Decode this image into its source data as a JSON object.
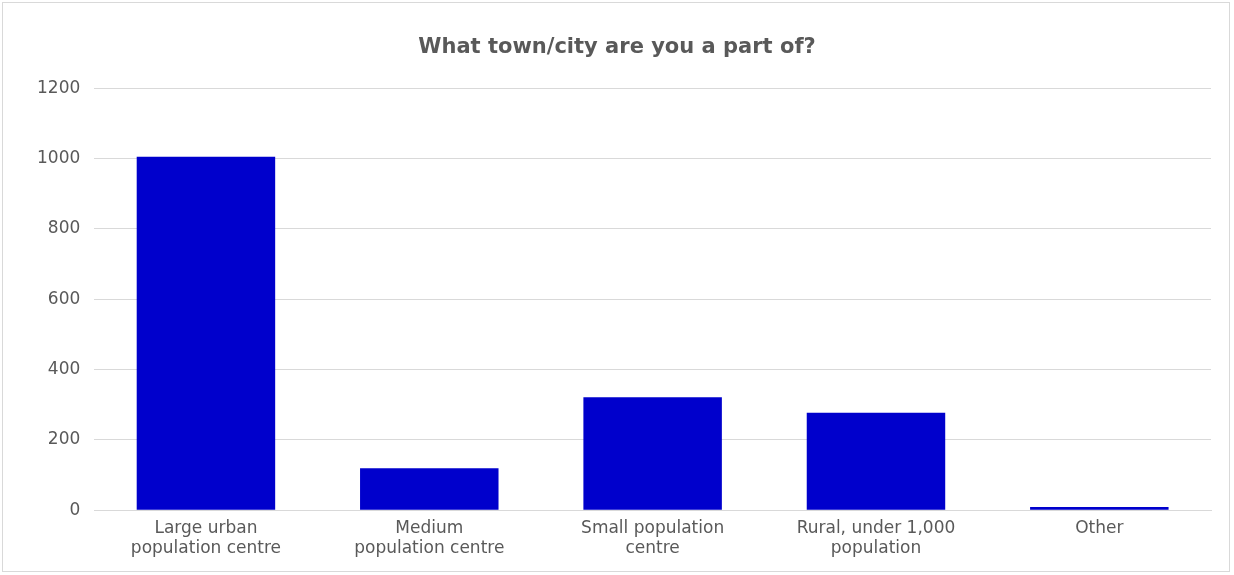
{
  "chart_data": {
    "type": "bar",
    "title": "What town/city are you a part of?",
    "categories": [
      [
        "Large urban",
        "population centre"
      ],
      [
        "Medium",
        "population centre"
      ],
      [
        "Small population",
        "centre"
      ],
      [
        "Rural, under 1,000",
        "population"
      ],
      "Other"
    ],
    "values": [
      1005,
      119,
      321,
      277,
      9
    ],
    "color": "#0000cc",
    "ylim": [
      0,
      1200
    ],
    "yticks": [
      0,
      200,
      400,
      600,
      800,
      1000,
      1200
    ],
    "grid": "y",
    "legend": false
  }
}
